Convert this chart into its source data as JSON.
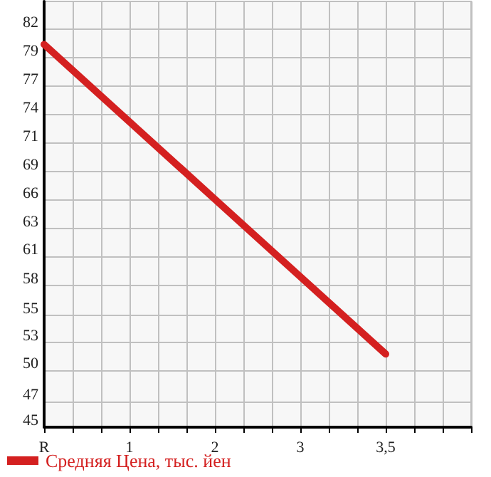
{
  "chart_data": {
    "type": "line",
    "categories": [
      "R",
      "1",
      "2",
      "3",
      "3,5",
      null
    ],
    "series": [
      {
        "name": "Средняя Цена, тыс. йен",
        "color": "#d42020",
        "values": [
          80.6,
          73.4,
          66.2,
          59.0,
          51.8,
          null
        ]
      }
    ],
    "ylim": [
      45,
      84.6
    ],
    "yticks": [
      45,
      {
        "value": 47.4,
        "label": "47"
      },
      {
        "value": 50.3,
        "label": "50"
      },
      {
        "value": 52.9,
        "label": "53"
      },
      {
        "value": 55.4,
        "label": "55"
      },
      {
        "value": 58.2,
        "label": "58"
      },
      {
        "value": 60.9,
        "label": "61"
      },
      {
        "value": 63.5,
        "label": "63"
      },
      {
        "value": 66.1,
        "label": "66"
      },
      {
        "value": 68.8,
        "label": "69"
      },
      {
        "value": 71.4,
        "label": "71"
      },
      {
        "value": 74.1,
        "label": "74"
      },
      {
        "value": 76.7,
        "label": "77"
      },
      {
        "value": 79.4,
        "label": "79"
      },
      82
    ],
    "grid": true,
    "legend": "bottom left",
    "marker": "none",
    "line_style": "solid"
  }
}
